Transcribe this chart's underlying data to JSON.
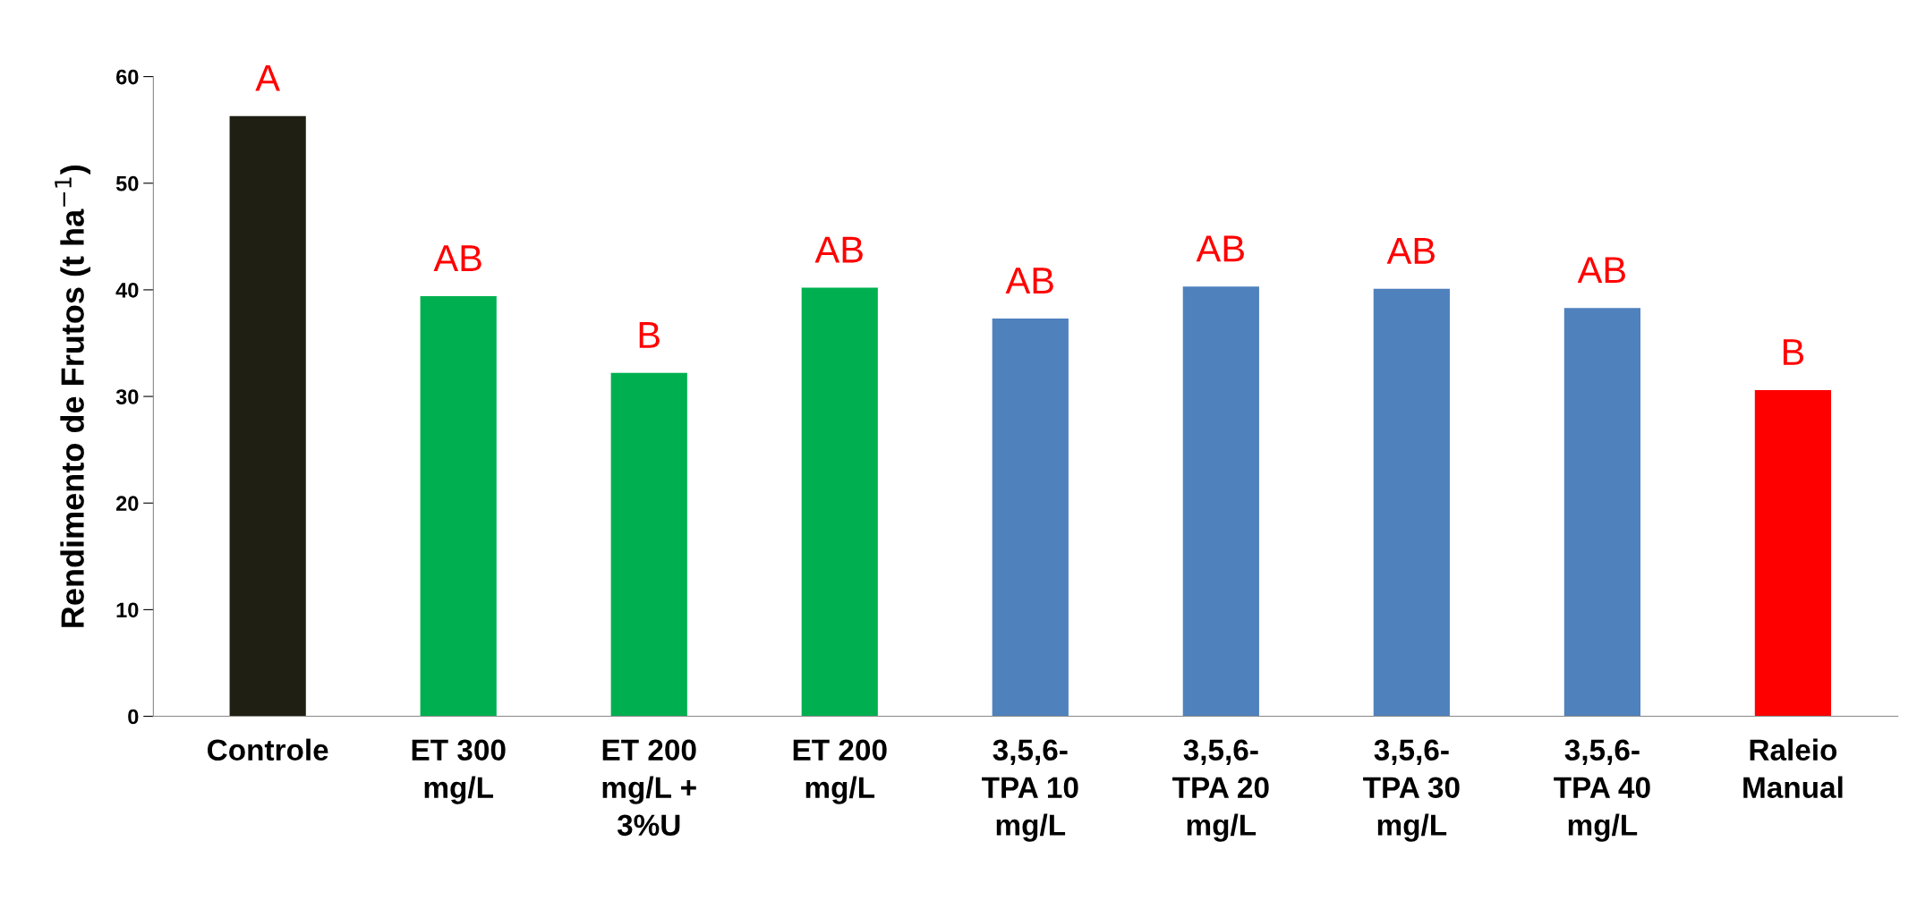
{
  "chart_data": {
    "type": "bar",
    "categories": [
      "Controle",
      "ET 300\nmg/L",
      "ET 200\nmg/L +\n3%U",
      "ET 200\nmg/L",
      "3,5,6-\nTPA 10\nmg/L",
      "3,5,6-\nTPA 20\nmg/L",
      "3,5,6-\nTPA 30\nmg/L",
      "3,5,6-\nTPA 40\nmg/L",
      "Raleio\nManual"
    ],
    "values": [
      56.3,
      39.4,
      32.2,
      40.2,
      37.3,
      40.3,
      40.1,
      38.3,
      30.6
    ],
    "colors": [
      "#201f14",
      "#00b050",
      "#00b050",
      "#00b050",
      "#4f81bd",
      "#4f81bd",
      "#4f81bd",
      "#4f81bd",
      "#ff0000"
    ],
    "ylabel": "Rendimento de Frutos (t ha$^{−1}$)",
    "ylim": [
      0,
      60
    ],
    "yticks": [
      0,
      10,
      20,
      30,
      40,
      50,
      60
    ],
    "grid": false,
    "annotations": [
      {
        "text": "A",
        "x": "Controle",
        "y": 56.3
      },
      {
        "text": "AB",
        "x": "ET 300\nmg/L",
        "y": 39.4
      },
      {
        "text": "B",
        "x": "ET 200\nmg/L +\n3%U",
        "y": 32.2
      },
      {
        "text": "AB",
        "x": "ET 200\nmg/L",
        "y": 40.2
      },
      {
        "text": "AB",
        "x": "3,5,6-\nTPA 10\nmg/L",
        "y": 37.3
      },
      {
        "text": "AB",
        "x": "3,5,6-\nTPA 20\nmg/L",
        "y": 40.3
      },
      {
        "text": "AB",
        "x": "3,5,6-\nTPA 30\nmg/L",
        "y": 40.1
      },
      {
        "text": "AB",
        "x": "3,5,6-\nTPA 40\nmg/L",
        "y": 38.3
      },
      {
        "text": "B",
        "x": "Raleio\nManual",
        "y": 30.6
      }
    ]
  }
}
